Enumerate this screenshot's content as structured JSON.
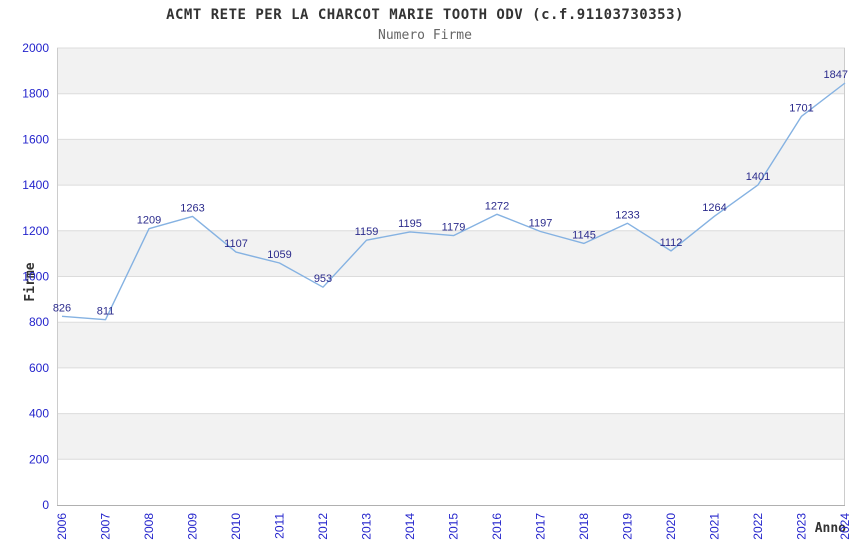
{
  "header": {
    "title": "ACMT RETE PER LA CHARCOT MARIE TOOTH ODV (c.f.91103730353)",
    "subtitle": "Numero Firme"
  },
  "chart_data": {
    "type": "line",
    "title": "ACMT RETE PER LA CHARCOT MARIE TOOTH ODV (c.f.91103730353)",
    "subtitle": "Numero Firme",
    "xlabel": "Anno",
    "ylabel": "Firme",
    "categories": [
      "2006",
      "2007",
      "2008",
      "2009",
      "2010",
      "2011",
      "2012",
      "2013",
      "2014",
      "2015",
      "2016",
      "2017",
      "2018",
      "2019",
      "2020",
      "2021",
      "2022",
      "2023",
      "2024"
    ],
    "series": [
      {
        "name": "Numero Firme",
        "values": [
          826,
          811,
          1209,
          1263,
          1107,
          1059,
          953,
          1159,
          1195,
          1179,
          1272,
          1197,
          1145,
          1233,
          1112,
          1264,
          1401,
          1701,
          1847
        ]
      }
    ],
    "ylim": [
      0,
      2000
    ],
    "ytick_step": 200,
    "yticks": [
      0,
      200,
      400,
      600,
      800,
      1000,
      1200,
      1400,
      1600,
      1800,
      2000
    ],
    "grid": true,
    "legend": "none",
    "data_labels": true,
    "background_bands": "alternating horizontal gray/white bands per 200 units, gray at top",
    "x_tick_rotation": -90,
    "colors": {
      "line": "#85b2e2",
      "tick_label": "#2424cc",
      "data_label": "#2b2b8c",
      "band": "#f2f2f2",
      "gridline": "#dcdcdc",
      "plot_border_side": "#cccccc",
      "axis_line_bottom": "#b0b0b0",
      "title": "#333333",
      "subtitle": "#666666",
      "axis_title": "#333333"
    }
  }
}
